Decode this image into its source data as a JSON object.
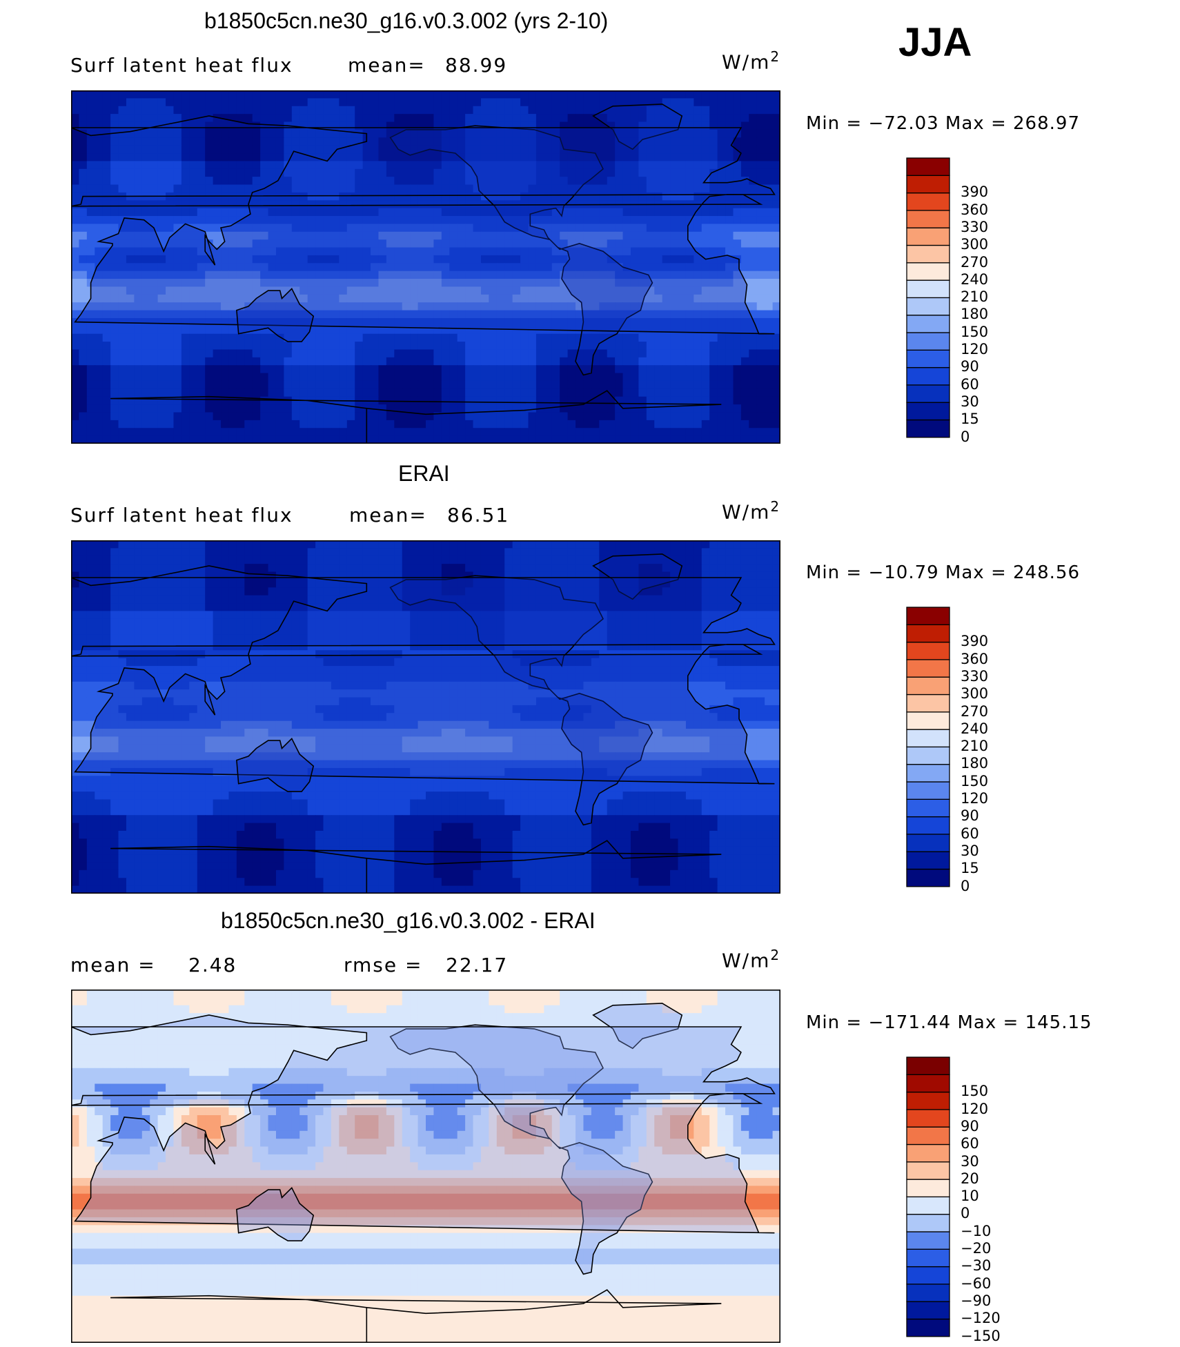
{
  "season": "JJA",
  "chart_data": [
    {
      "type": "heatmap",
      "title": "b1850c5cn.ne30_g16.v0.3.002 (yrs 2-10)",
      "variable": "Surf latent heat flux",
      "stat_label": "mean=",
      "stat_value": "88.99",
      "units": "W/m",
      "units_exp": "2",
      "min_label": "Min = ",
      "min_value": "−72.03",
      "max_label": " Max = ",
      "max_value": "268.97",
      "levels": [
        "0",
        "15",
        "30",
        "60",
        "90",
        "120",
        "150",
        "180",
        "210",
        "240",
        "270",
        "300",
        "330",
        "360",
        "390"
      ],
      "colors": [
        "#000a7d",
        "#00199d",
        "#0731bd",
        "#1545d8",
        "#2c5ee6",
        "#5b86ee",
        "#83a8f4",
        "#aec8f8",
        "#d2e2fb",
        "#fdeadc",
        "#fcc5a5",
        "#f9a175",
        "#f27648",
        "#e3461e",
        "#bf1e03",
        "#8a0000"
      ],
      "field": "model"
    },
    {
      "type": "heatmap",
      "title": "ERAI",
      "variable": "Surf latent heat flux",
      "stat_label": "mean=",
      "stat_value": "86.51",
      "units": "W/m",
      "units_exp": "2",
      "min_label": "Min = ",
      "min_value": "−10.79",
      "max_label": " Max = ",
      "max_value": "248.56",
      "levels": [
        "0",
        "15",
        "30",
        "60",
        "90",
        "120",
        "150",
        "180",
        "210",
        "240",
        "270",
        "300",
        "330",
        "360",
        "390"
      ],
      "colors": [
        "#000a7d",
        "#00199d",
        "#0731bd",
        "#1545d8",
        "#2c5ee6",
        "#5b86ee",
        "#83a8f4",
        "#aec8f8",
        "#d2e2fb",
        "#fdeadc",
        "#fcc5a5",
        "#f9a175",
        "#f27648",
        "#e3461e",
        "#bf1e03",
        "#8a0000"
      ],
      "field": "obs"
    },
    {
      "type": "heatmap",
      "title": "b1850c5cn.ne30_g16.v0.3.002 - ERAI",
      "variable": "",
      "stat_label": "mean =",
      "stat_value": "2.48",
      "stat2_label": "rmse =",
      "stat2_value": "22.17",
      "units": "W/m",
      "units_exp": "2",
      "min_label": "Min = ",
      "min_value": "−171.44",
      "max_label": " Max = ",
      "max_value": "145.15",
      "levels": [
        "−150",
        "−120",
        "−90",
        "−60",
        "−30",
        "−20",
        "−10",
        "0",
        "10",
        "20",
        "30",
        "60",
        "90",
        "120",
        "150"
      ],
      "colors": [
        "#000a7d",
        "#00199d",
        "#0731bd",
        "#1545d8",
        "#2c5ee6",
        "#5b86ee",
        "#aec8f8",
        "#d8e7fc",
        "#fdeadc",
        "#fcc5a5",
        "#f9a175",
        "#f27648",
        "#e3461e",
        "#bf1e03",
        "#a00a00",
        "#7a0000"
      ],
      "field": "diff"
    }
  ]
}
